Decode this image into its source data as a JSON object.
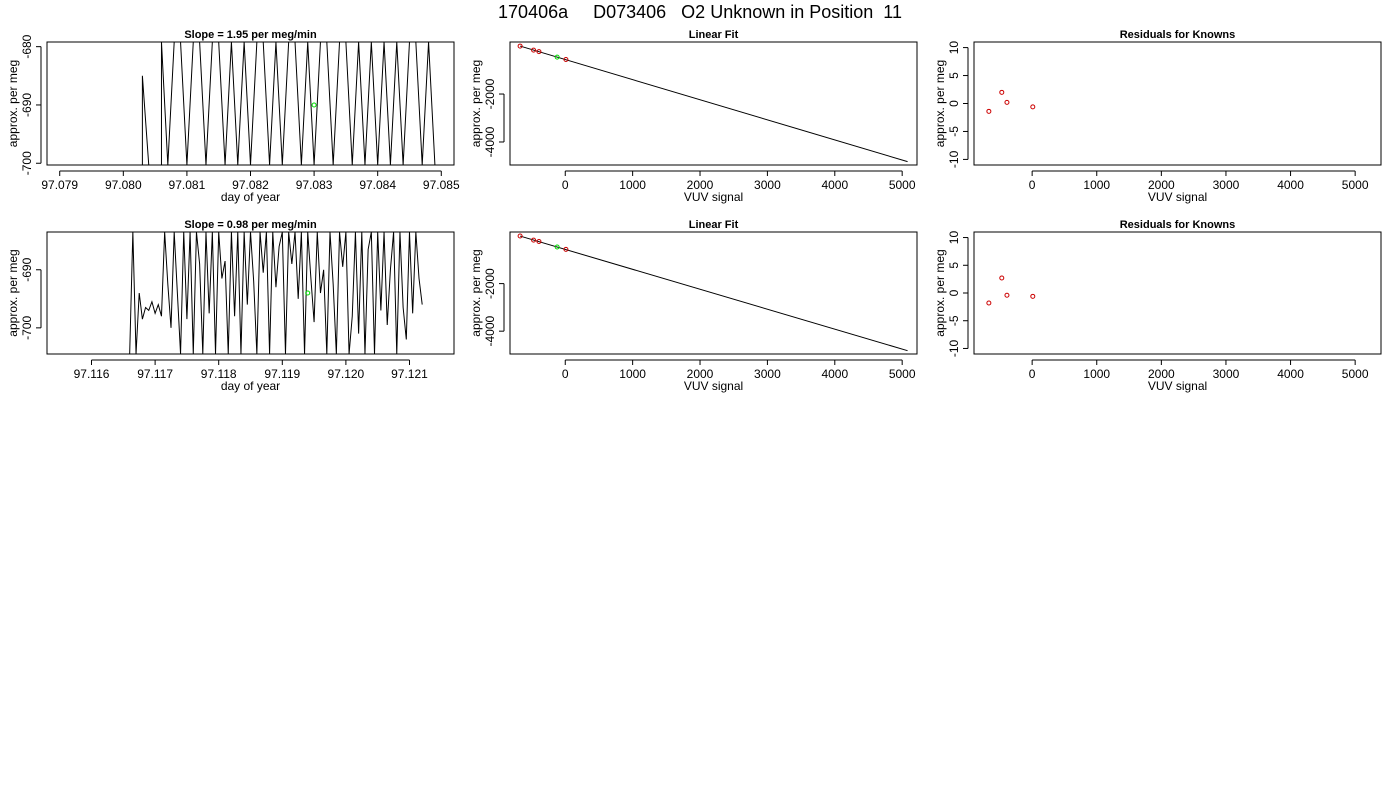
{
  "page": {
    "title": "170406a     D073406   O2 Unknown in Position  11"
  },
  "chart_data": [
    {
      "id": "row1-timeseries",
      "type": "line",
      "title": "Slope =  1.95  per meg/min",
      "xlabel": "day of year",
      "ylabel": "approx. per meg",
      "xlim": [
        97.0788,
        97.0852
      ],
      "ylim": [
        -700.3,
        -679.2
      ],
      "xticks": [
        "97.079",
        "97.080",
        "97.081",
        "97.082",
        "97.083",
        "97.084",
        "97.085"
      ],
      "yticks": [
        "-700",
        "-690",
        "-680"
      ],
      "grid": false,
      "series": [
        {
          "color": "#000000",
          "x": [
            97.0803,
            97.0803,
            97.0804,
            97.0806,
            97.0806,
            97.0807,
            97.0808,
            97.0809,
            97.081,
            97.0811,
            97.0812,
            97.0813,
            97.0814,
            97.0815,
            97.0816,
            97.0817,
            97.0818,
            97.0819,
            97.082,
            97.0821,
            97.0822,
            97.0823,
            97.0824,
            97.0825,
            97.0826,
            97.0827,
            97.0828,
            97.0829,
            97.083,
            97.0831,
            97.0832,
            97.0833,
            97.0834,
            97.0835,
            97.0836,
            97.0837,
            97.0838,
            97.0839,
            97.084,
            97.0841,
            97.0842,
            97.0843,
            97.0844,
            97.0845,
            97.0846,
            97.0847,
            97.0848,
            97.0849
          ],
          "y": [
            -700.3,
            -685.0,
            -700.3,
            -700.3,
            -679.2,
            -700.3,
            -679.2,
            -679.2,
            -700.3,
            -679.2,
            -679.2,
            -700.3,
            -679.2,
            -679.2,
            -700.3,
            -679.2,
            -700.3,
            -679.2,
            -700.3,
            -679.2,
            -679.2,
            -700.3,
            -679.2,
            -700.3,
            -679.2,
            -679.2,
            -700.3,
            -679.2,
            -700.3,
            -679.2,
            -679.2,
            -700.3,
            -679.2,
            -679.2,
            -700.3,
            -679.2,
            -700.3,
            -679.2,
            -700.3,
            -679.2,
            -700.3,
            -679.2,
            -700.3,
            -679.2,
            -679.2,
            -700.3,
            -679.2,
            -700.3
          ]
        }
      ],
      "points": [
        {
          "x": 97.083,
          "y": -690.0,
          "color": "#00dd00"
        }
      ]
    },
    {
      "id": "row1-linear-fit",
      "type": "scatter",
      "title": "Linear Fit",
      "xlabel": "VUV signal",
      "ylabel": "approx. per meg",
      "xlim": [
        -820,
        5220
      ],
      "ylim": [
        -4960,
        170
      ],
      "xticks": [
        "0",
        "1000",
        "2000",
        "3000",
        "4000",
        "5000"
      ],
      "yticks": [
        "-4000",
        "-2000"
      ],
      "grid": false,
      "line": {
        "x": [
          -670,
          5080
        ],
        "y": [
          0,
          -4820
        ]
      },
      "points": [
        {
          "x": -670,
          "y": 0,
          "color": "#cc0000"
        },
        {
          "x": -470,
          "y": -170,
          "color": "#cc0000"
        },
        {
          "x": -390,
          "y": -230,
          "color": "#cc0000"
        },
        {
          "x": -120,
          "y": -460,
          "color": "#00dd00"
        },
        {
          "x": 10,
          "y": -560,
          "color": "#cc0000"
        }
      ]
    },
    {
      "id": "row1-residuals",
      "type": "scatter",
      "title": "Residuals for Knowns",
      "xlabel": "VUV signal",
      "ylabel": "approx. per meg",
      "xlim": [
        -900,
        5400
      ],
      "ylim": [
        -11,
        11
      ],
      "xticks": [
        "0",
        "1000",
        "2000",
        "3000",
        "4000",
        "5000"
      ],
      "yticks": [
        "-10",
        "-5",
        "0",
        "5",
        "10"
      ],
      "grid": false,
      "points": [
        {
          "x": -670,
          "y": -1.4,
          "color": "#cc0000"
        },
        {
          "x": -470,
          "y": 2.0,
          "color": "#cc0000"
        },
        {
          "x": -390,
          "y": 0.2,
          "color": "#cc0000"
        },
        {
          "x": 10,
          "y": -0.6,
          "color": "#cc0000"
        }
      ]
    },
    {
      "id": "row2-timeseries",
      "type": "line",
      "title": "Slope =  0.98  per meg/min",
      "xlabel": "day of year",
      "ylabel": "approx. per meg",
      "xlim": [
        97.1153,
        97.1217
      ],
      "ylim": [
        -704.5,
        -683.5
      ],
      "xticks": [
        "97.116",
        "97.117",
        "97.118",
        "97.119",
        "97.120",
        "97.121"
      ],
      "yticks": [
        "-700",
        "-690"
      ],
      "grid": false,
      "series": [
        {
          "color": "#000000",
          "x": [
            97.1166,
            97.11665,
            97.1167,
            97.11675,
            97.1168,
            97.11685,
            97.1169,
            97.11695,
            97.117,
            97.11705,
            97.1171,
            97.11715,
            97.1172,
            97.11725,
            97.1173,
            97.11735,
            97.1174,
            97.11745,
            97.1175,
            97.11755,
            97.1176,
            97.11765,
            97.1177,
            97.11775,
            97.1178,
            97.11785,
            97.1179,
            97.11795,
            97.118,
            97.11805,
            97.1181,
            97.11815,
            97.1182,
            97.11825,
            97.1183,
            97.11835,
            97.1184,
            97.11845,
            97.1185,
            97.11855,
            97.1186,
            97.11865,
            97.1187,
            97.11875,
            97.1188,
            97.11885,
            97.1189,
            97.11895,
            97.119,
            97.11905,
            97.1191,
            97.11915,
            97.1192,
            97.11925,
            97.1193,
            97.11935,
            97.1194,
            97.11945,
            97.1195,
            97.11955,
            97.1196,
            97.11965,
            97.1197,
            97.11975,
            97.1198,
            97.11985,
            97.1199,
            97.11995,
            97.12,
            97.12005,
            97.1201,
            97.12015,
            97.1202,
            97.12025,
            97.1203,
            97.12035,
            97.1204,
            97.12045,
            97.1205,
            97.12055,
            97.1206,
            97.12065,
            97.1207,
            97.12075,
            97.1208,
            97.12085,
            97.1209,
            97.12095,
            97.121,
            97.12105,
            97.1211,
            97.12115,
            97.1212
          ],
          "y": [
            -704.5,
            -683.5,
            -704.5,
            -694.0,
            -698.5,
            -696.5,
            -697.0,
            -695.5,
            -697.5,
            -696.0,
            -698.0,
            -683.5,
            -692.5,
            -700.0,
            -683.5,
            -694.0,
            -704.5,
            -683.5,
            -698.5,
            -683.5,
            -704.5,
            -683.5,
            -689.0,
            -704.5,
            -683.5,
            -697.5,
            -683.5,
            -704.5,
            -683.5,
            -691.5,
            -688.5,
            -704.5,
            -683.5,
            -698.0,
            -683.5,
            -704.5,
            -683.5,
            -696.0,
            -683.5,
            -692.0,
            -704.5,
            -683.5,
            -690.5,
            -683.5,
            -704.5,
            -683.5,
            -693.0,
            -686.0,
            -683.5,
            -704.5,
            -683.5,
            -689.0,
            -683.5,
            -695.0,
            -683.5,
            -704.5,
            -683.5,
            -691.5,
            -699.0,
            -683.5,
            -694.0,
            -690.0,
            -704.5,
            -683.5,
            -692.5,
            -704.5,
            -683.5,
            -689.5,
            -683.5,
            -704.5,
            -698.0,
            -683.5,
            -701.0,
            -683.5,
            -704.5,
            -686.5,
            -683.5,
            -704.5,
            -683.5,
            -697.0,
            -683.5,
            -699.5,
            -690.0,
            -683.5,
            -704.5,
            -683.5,
            -696.5,
            -702.0,
            -683.5,
            -697.5,
            -683.5,
            -691.5,
            -696.0
          ]
        }
      ],
      "points": [
        {
          "x": 97.1194,
          "y": -694.0,
          "color": "#00dd00"
        }
      ]
    },
    {
      "id": "row2-linear-fit",
      "type": "scatter",
      "title": "Linear Fit",
      "xlabel": "VUV signal",
      "ylabel": "approx. per meg",
      "xlim": [
        -820,
        5220
      ],
      "ylim": [
        -4960,
        170
      ],
      "xticks": [
        "0",
        "1000",
        "2000",
        "3000",
        "4000",
        "5000"
      ],
      "yticks": [
        "-4000",
        "-2000"
      ],
      "grid": false,
      "line": {
        "x": [
          -670,
          5080
        ],
        "y": [
          0,
          -4820
        ]
      },
      "points": [
        {
          "x": -670,
          "y": 0,
          "color": "#cc0000"
        },
        {
          "x": -470,
          "y": -170,
          "color": "#cc0000"
        },
        {
          "x": -390,
          "y": -230,
          "color": "#cc0000"
        },
        {
          "x": -120,
          "y": -460,
          "color": "#00dd00"
        },
        {
          "x": 10,
          "y": -560,
          "color": "#cc0000"
        }
      ]
    },
    {
      "id": "row2-residuals",
      "type": "scatter",
      "title": "Residuals for Knowns",
      "xlabel": "VUV signal",
      "ylabel": "approx. per meg",
      "xlim": [
        -900,
        5400
      ],
      "ylim": [
        -11,
        11
      ],
      "xticks": [
        "0",
        "1000",
        "2000",
        "3000",
        "4000",
        "5000"
      ],
      "yticks": [
        "-10",
        "-5",
        "0",
        "5",
        "10"
      ],
      "grid": false,
      "points": [
        {
          "x": -670,
          "y": -1.8,
          "color": "#cc0000"
        },
        {
          "x": -470,
          "y": 2.7,
          "color": "#cc0000"
        },
        {
          "x": -390,
          "y": -0.4,
          "color": "#cc0000"
        },
        {
          "x": 10,
          "y": -0.6,
          "color": "#cc0000"
        }
      ]
    }
  ]
}
